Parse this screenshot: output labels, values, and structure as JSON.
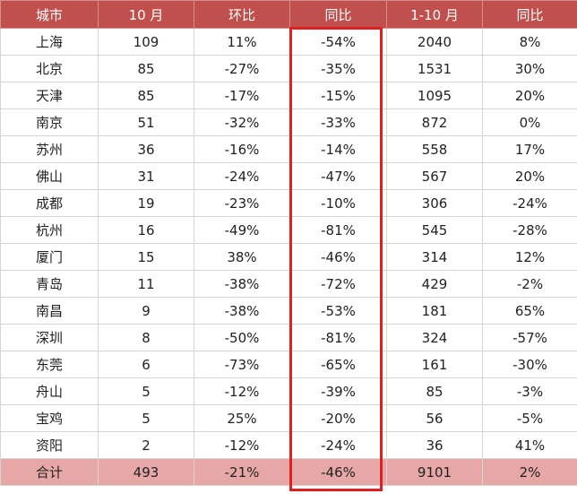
{
  "table": {
    "headers": [
      "城市",
      "10 月",
      "环比",
      "同比",
      "1-10 月",
      "同比"
    ],
    "rows": [
      [
        "上海",
        "109",
        "11%",
        "-54%",
        "2040",
        "8%"
      ],
      [
        "北京",
        "85",
        "-27%",
        "-35%",
        "1531",
        "30%"
      ],
      [
        "天津",
        "85",
        "-17%",
        "-15%",
        "1095",
        "20%"
      ],
      [
        "南京",
        "51",
        "-32%",
        "-33%",
        "872",
        "0%"
      ],
      [
        "苏州",
        "36",
        "-16%",
        "-14%",
        "558",
        "17%"
      ],
      [
        "佛山",
        "31",
        "-24%",
        "-47%",
        "567",
        "20%"
      ],
      [
        "成都",
        "19",
        "-23%",
        "-10%",
        "306",
        "-24%"
      ],
      [
        "杭州",
        "16",
        "-49%",
        "-81%",
        "545",
        "-28%"
      ],
      [
        "厦门",
        "15",
        "38%",
        "-46%",
        "314",
        "12%"
      ],
      [
        "青岛",
        "11",
        "-38%",
        "-72%",
        "429",
        "-2%"
      ],
      [
        "南昌",
        "9",
        "-38%",
        "-53%",
        "181",
        "65%"
      ],
      [
        "深圳",
        "8",
        "-50%",
        "-81%",
        "324",
        "-57%"
      ],
      [
        "东莞",
        "6",
        "-73%",
        "-65%",
        "161",
        "-30%"
      ],
      [
        "舟山",
        "5",
        "-12%",
        "-39%",
        "85",
        "-3%"
      ],
      [
        "宝鸡",
        "5",
        "25%",
        "-20%",
        "56",
        "-5%"
      ],
      [
        "资阳",
        "2",
        "-12%",
        "-24%",
        "36",
        "41%"
      ]
    ],
    "total": [
      "合计",
      "493",
      "-21%",
      "-46%",
      "9101",
      "2%"
    ]
  },
  "colors": {
    "header_bg": "#c0504d",
    "total_bg": "#e6a8a6",
    "highlight_border": "#e0201f"
  }
}
